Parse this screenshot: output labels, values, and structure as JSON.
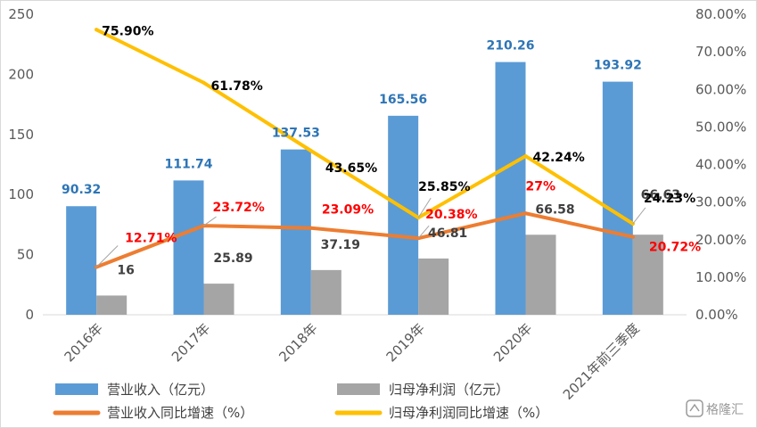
{
  "chart_data": {
    "type": "bar",
    "categories": [
      "2016年",
      "2017年",
      "2018年",
      "2019年",
      "2020年",
      "2021年前三季度"
    ],
    "series": [
      {
        "name": "营业收入（亿元）",
        "kind": "bar",
        "axis": "left",
        "color": "#5b9bd5",
        "values": [
          90.32,
          111.74,
          137.53,
          165.56,
          210.26,
          193.92
        ],
        "labels": [
          "90.32",
          "111.74",
          "137.53",
          "165.56",
          "210.26",
          "193.92"
        ],
        "label_color": "#2e75b6"
      },
      {
        "name": "归母净利润（亿元）",
        "kind": "bar",
        "axis": "left",
        "color": "#a5a5a5",
        "values": [
          16,
          25.89,
          37.19,
          46.81,
          66.58,
          66.63
        ],
        "labels": [
          "16",
          "25.89",
          "37.19",
          "46.81",
          "66.58",
          "66.63"
        ],
        "label_color": "#404040"
      },
      {
        "name": "营业收入同比增速（%）",
        "kind": "line",
        "axis": "right",
        "color": "#ed7d31",
        "values": [
          12.71,
          23.72,
          23.09,
          20.38,
          27,
          20.72
        ],
        "labels": [
          "12.71%",
          "23.72%",
          "23.09%",
          "20.38%",
          "27%",
          "20.72%"
        ],
        "label_color": "#ff0000"
      },
      {
        "name": "归母净利润同比增速（%）",
        "kind": "line",
        "axis": "right",
        "color": "#ffc000",
        "values": [
          75.9,
          61.78,
          43.65,
          25.85,
          42.24,
          24.23
        ],
        "labels": [
          "75.90%",
          "61.78%",
          "43.65%",
          "25.85%",
          "42.24%",
          "24.23%"
        ],
        "label_color": "#000000"
      }
    ],
    "y_left": {
      "min": 0,
      "max": 250,
      "ticks": [
        "0",
        "50",
        "100",
        "150",
        "200",
        "250"
      ]
    },
    "y_right": {
      "min": 0,
      "max": 80,
      "ticks": [
        "0.00%",
        "10.00%",
        "20.00%",
        "30.00%",
        "40.00%",
        "50.00%",
        "60.00%",
        "70.00%",
        "80.00%"
      ]
    },
    "grid": false,
    "legend_position": "bottom"
  },
  "watermark": "格隆汇"
}
